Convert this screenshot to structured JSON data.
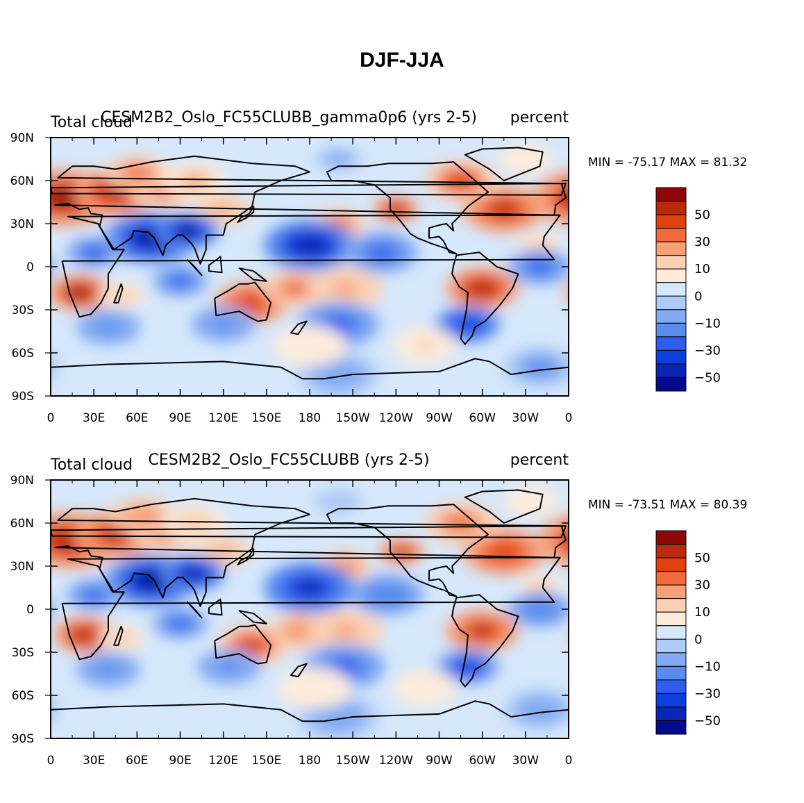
{
  "figure": {
    "title": "DJF-JJA"
  },
  "chart_data": [
    {
      "type": "heatmap",
      "panel": "top",
      "title_left": "Total cloud",
      "title_center": "CESM2B2_Oslo_FC55CLUBB_gamma0p6 (yrs 2-5)",
      "title_right": "percent",
      "stats_text": "MIN = -75.17 MAX =  81.32",
      "min": -75.17,
      "max": 81.32,
      "x_tick_labels": [
        "0",
        "30E",
        "60E",
        "90E",
        "120E",
        "150E",
        "180",
        "150W",
        "120W",
        "90W",
        "60W",
        "30W",
        "0"
      ],
      "y_tick_labels": [
        "90N",
        "60N",
        "30N",
        "0",
        "30S",
        "60S",
        "90S"
      ],
      "xlim": [
        0,
        360
      ],
      "ylim": [
        -90,
        90
      ]
    },
    {
      "type": "heatmap",
      "panel": "bottom",
      "title_left": "Total cloud",
      "title_center": "CESM2B2_Oslo_FC55CLUBB (yrs 2-5)",
      "title_right": "percent",
      "stats_text": "MIN = -73.51 MAX =  80.39",
      "min": -73.51,
      "max": 80.39,
      "x_tick_labels": [
        "0",
        "30E",
        "60E",
        "90E",
        "120E",
        "150E",
        "180",
        "150W",
        "120W",
        "90W",
        "60W",
        "30W",
        "0"
      ],
      "y_tick_labels": [
        "90N",
        "60N",
        "30N",
        "0",
        "30S",
        "60S",
        "90S"
      ],
      "xlim": [
        0,
        360
      ],
      "ylim": [
        -90,
        90
      ]
    }
  ],
  "colorbar": {
    "colors": [
      "#8c0707",
      "#b82a0a",
      "#e0420f",
      "#f06a3a",
      "#f6a07a",
      "#fbd1b4",
      "#fdecdc",
      "#d6e8fb",
      "#adcbf7",
      "#83aaf2",
      "#5a8cee",
      "#2e5ef0",
      "#0c3fde",
      "#0a26b4",
      "#050a8c"
    ],
    "labels": [
      "50",
      "30",
      "10",
      "0",
      "-10",
      "-30",
      "-50"
    ],
    "label_values": [
      50,
      30,
      10,
      0,
      -10,
      -30,
      -50
    ]
  },
  "features": [
    {
      "lon": 10,
      "lat": 48,
      "r": 22,
      "v": 60
    },
    {
      "lon": 45,
      "lat": 52,
      "r": 18,
      "v": 55
    },
    {
      "lon": 80,
      "lat": 55,
      "r": 16,
      "v": 35
    },
    {
      "lon": 60,
      "lat": 65,
      "r": 14,
      "v": 30
    },
    {
      "lon": 100,
      "lat": 60,
      "r": 14,
      "v": 20
    },
    {
      "lon": 120,
      "lat": 40,
      "r": 12,
      "v": 25
    },
    {
      "lon": 20,
      "lat": -18,
      "r": 14,
      "v": 60
    },
    {
      "lon": 50,
      "lat": -20,
      "r": 10,
      "v": 15
    },
    {
      "lon": 140,
      "lat": -25,
      "r": 16,
      "v": 45
    },
    {
      "lon": 170,
      "lat": -15,
      "r": 14,
      "v": 30
    },
    {
      "lon": 205,
      "lat": -15,
      "r": 16,
      "v": 25
    },
    {
      "lon": 300,
      "lat": -15,
      "r": 16,
      "v": 55
    },
    {
      "lon": 240,
      "lat": 40,
      "r": 10,
      "v": 55
    },
    {
      "lon": 315,
      "lat": 40,
      "r": 18,
      "v": 50
    },
    {
      "lon": 285,
      "lat": 60,
      "r": 16,
      "v": 40
    },
    {
      "lon": 200,
      "lat": 30,
      "r": 12,
      "v": 30
    },
    {
      "lon": 340,
      "lat": 15,
      "r": 10,
      "v": 15
    },
    {
      "lon": 70,
      "lat": 20,
      "r": 20,
      "v": -65
    },
    {
      "lon": 95,
      "lat": 25,
      "r": 14,
      "v": -60
    },
    {
      "lon": 30,
      "lat": 10,
      "r": 12,
      "v": -40
    },
    {
      "lon": 180,
      "lat": 15,
      "r": 20,
      "v": -55
    },
    {
      "lon": 230,
      "lat": 10,
      "r": 16,
      "v": -30
    },
    {
      "lon": 340,
      "lat": 0,
      "r": 14,
      "v": -30
    },
    {
      "lon": 90,
      "lat": -10,
      "r": 12,
      "v": -35
    },
    {
      "lon": 200,
      "lat": -40,
      "r": 18,
      "v": -35
    },
    {
      "lon": 290,
      "lat": -40,
      "r": 14,
      "v": -45
    },
    {
      "lon": 40,
      "lat": -42,
      "r": 14,
      "v": -25
    },
    {
      "lon": 120,
      "lat": -40,
      "r": 14,
      "v": -25
    },
    {
      "lon": 200,
      "lat": -75,
      "r": 18,
      "v": -15
    },
    {
      "lon": 340,
      "lat": -70,
      "r": 16,
      "v": -20
    },
    {
      "lon": 180,
      "lat": -55,
      "r": 16,
      "v": 8
    },
    {
      "lon": 260,
      "lat": -55,
      "r": 14,
      "v": 10
    },
    {
      "lon": 200,
      "lat": 75,
      "r": 16,
      "v": -10
    },
    {
      "lon": 330,
      "lat": 75,
      "r": 12,
      "v": 8
    }
  ],
  "coast_shapes": [
    [
      [
        -18,
        15
      ],
      [
        -10,
        5
      ],
      [
        8,
        4
      ],
      [
        10,
        -5
      ],
      [
        13,
        -18
      ],
      [
        20,
        -35
      ],
      [
        28,
        -33
      ],
      [
        35,
        -25
      ],
      [
        40,
        -15
      ],
      [
        40,
        -5
      ],
      [
        51,
        12
      ],
      [
        43,
        12
      ],
      [
        33,
        30
      ],
      [
        12,
        35
      ],
      [
        -6,
        36
      ],
      [
        -17,
        21
      ]
    ],
    [
      [
        -10,
        36
      ],
      [
        -9,
        43
      ],
      [
        -2,
        48
      ],
      [
        -5,
        58
      ],
      [
        5,
        62
      ],
      [
        15,
        70
      ],
      [
        30,
        70
      ],
      [
        45,
        68
      ],
      [
        70,
        73
      ],
      [
        100,
        77
      ],
      [
        140,
        72
      ],
      [
        170,
        70
      ],
      [
        180,
        66
      ],
      [
        160,
        60
      ],
      [
        142,
        52
      ],
      [
        140,
        42
      ],
      [
        130,
        35
      ],
      [
        122,
        30
      ],
      [
        120,
        22
      ],
      [
        108,
        22
      ],
      [
        108,
        12
      ],
      [
        104,
        2
      ],
      [
        100,
        13
      ],
      [
        98,
        16
      ],
      [
        92,
        22
      ],
      [
        88,
        22
      ],
      [
        80,
        15
      ],
      [
        78,
        8
      ],
      [
        72,
        20
      ],
      [
        68,
        24
      ],
      [
        58,
        25
      ],
      [
        56,
        20
      ],
      [
        44,
        12
      ],
      [
        34,
        28
      ],
      [
        36,
        36
      ],
      [
        28,
        37
      ],
      [
        26,
        41
      ],
      [
        20,
        40
      ],
      [
        12,
        44
      ],
      [
        3,
        43
      ]
    ],
    [
      [
        -168,
        66
      ],
      [
        -160,
        70
      ],
      [
        -140,
        70
      ],
      [
        -125,
        72
      ],
      [
        -95,
        72
      ],
      [
        -80,
        73
      ],
      [
        -65,
        60
      ],
      [
        -56,
        52
      ],
      [
        -66,
        45
      ],
      [
        -70,
        42
      ],
      [
        -76,
        35
      ],
      [
        -81,
        30
      ],
      [
        -80,
        25
      ],
      [
        -85,
        30
      ],
      [
        -90,
        29
      ],
      [
        -97,
        27
      ],
      [
        -97,
        20
      ],
      [
        -90,
        21
      ],
      [
        -87,
        18
      ],
      [
        -83,
        10
      ],
      [
        -78,
        9
      ],
      [
        -86,
        13
      ],
      [
        -95,
        16
      ],
      [
        -105,
        20
      ],
      [
        -110,
        23
      ],
      [
        -117,
        32
      ],
      [
        -124,
        40
      ],
      [
        -124,
        48
      ],
      [
        -135,
        57
      ],
      [
        -150,
        60
      ],
      [
        -165,
        60
      ]
    ],
    [
      [
        -78,
        8
      ],
      [
        -62,
        10
      ],
      [
        -50,
        0
      ],
      [
        -35,
        -5
      ],
      [
        -39,
        -15
      ],
      [
        -48,
        -27
      ],
      [
        -58,
        -38
      ],
      [
        -65,
        -42
      ],
      [
        -67,
        -48
      ],
      [
        -72,
        -54
      ],
      [
        -75,
        -50
      ],
      [
        -73,
        -40
      ],
      [
        -71,
        -30
      ],
      [
        -70,
        -18
      ],
      [
        -76,
        -14
      ],
      [
        -81,
        -5
      ],
      [
        -80,
        1
      ]
    ],
    [
      [
        -45,
        60
      ],
      [
        -20,
        70
      ],
      [
        -18,
        80
      ],
      [
        -35,
        83
      ],
      [
        -60,
        82
      ],
      [
        -72,
        78
      ],
      [
        -55,
        68
      ]
    ],
    [
      [
        114,
        -22
      ],
      [
        123,
        -17
      ],
      [
        131,
        -12
      ],
      [
        137,
        -12
      ],
      [
        142,
        -11
      ],
      [
        145,
        -15
      ],
      [
        153,
        -25
      ],
      [
        150,
        -37
      ],
      [
        144,
        -38
      ],
      [
        138,
        -35
      ],
      [
        131,
        -31
      ],
      [
        115,
        -34
      ]
    ],
    [
      [
        95,
        5
      ],
      [
        105,
        -6
      ],
      [
        100,
        0
      ]
    ],
    [
      [
        110,
        1
      ],
      [
        118,
        7
      ],
      [
        119,
        -4
      ],
      [
        110,
        -3
      ]
    ],
    [
      [
        131,
        -1
      ],
      [
        141,
        -3
      ],
      [
        150,
        -10
      ],
      [
        141,
        -9
      ]
    ],
    [
      [
        130,
        31
      ],
      [
        136,
        34
      ],
      [
        141,
        38
      ],
      [
        141,
        42
      ],
      [
        138,
        37
      ],
      [
        132,
        34
      ]
    ],
    [
      [
        44,
        -25
      ],
      [
        47,
        -25
      ],
      [
        50,
        -15
      ],
      [
        49,
        -12
      ]
    ],
    [
      [
        -5,
        50
      ],
      [
        -2,
        58
      ],
      [
        0,
        55
      ],
      [
        1,
        51
      ]
    ],
    [
      [
        172,
        -40
      ],
      [
        178,
        -38
      ],
      [
        172,
        -47
      ],
      [
        167,
        -46
      ]
    ]
  ],
  "antarctic_line": [
    [
      0,
      -70
    ],
    [
      40,
      -68
    ],
    [
      80,
      -67
    ],
    [
      120,
      -66
    ],
    [
      160,
      -70
    ],
    [
      175,
      -78
    ],
    [
      190,
      -78
    ],
    [
      210,
      -75
    ],
    [
      240,
      -74
    ],
    [
      270,
      -73
    ],
    [
      295,
      -64
    ],
    [
      305,
      -66
    ],
    [
      320,
      -75
    ],
    [
      340,
      -72
    ],
    [
      360,
      -70
    ]
  ]
}
